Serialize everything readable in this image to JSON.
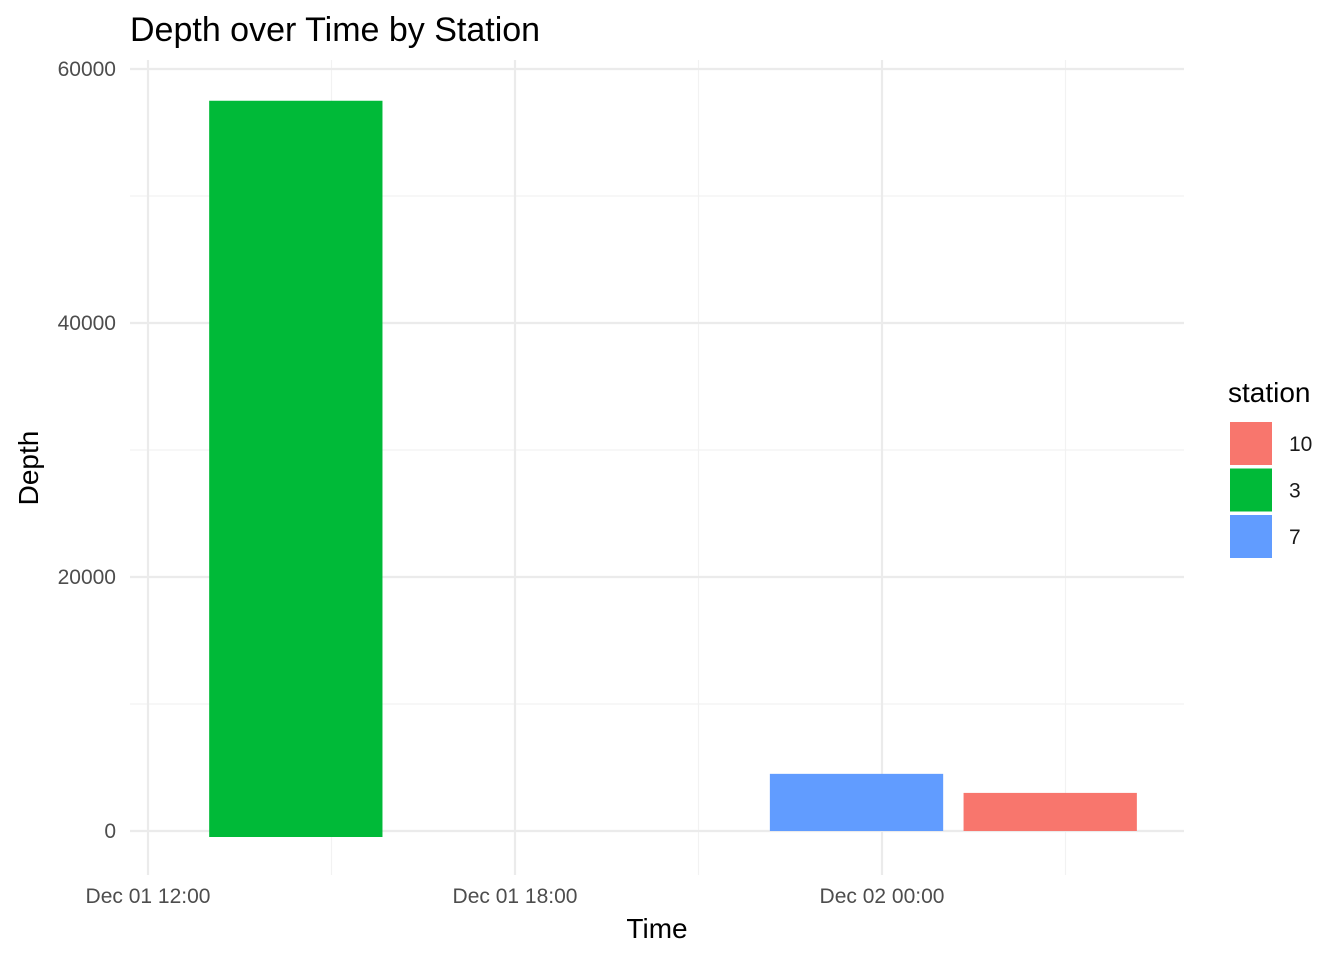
{
  "chart_data": {
    "type": "bar",
    "title": "Depth over Time by Station",
    "xlabel": "Time",
    "ylabel": "Depth",
    "x_ticks": [
      "Dec 01 12:00",
      "Dec 01 18:00",
      "Dec 02 00:00"
    ],
    "y_ticks": [
      "0",
      "20000",
      "40000",
      "60000"
    ],
    "ylim": [
      -3000,
      62000
    ],
    "grid": true,
    "legend": {
      "title": "station",
      "placement": "right",
      "entries": [
        "10",
        "3",
        "7"
      ]
    },
    "series": [
      {
        "name": "3",
        "color": "#00BA38",
        "bars": [
          {
            "start": "Dec 01 13:00",
            "end": "Dec 01 15:50",
            "value": 57500
          }
        ]
      },
      {
        "name": "7",
        "color": "#619CFF",
        "bars": [
          {
            "start": "Dec 01 22:10",
            "end": "Dec 02 01:00",
            "value": 4500
          }
        ]
      },
      {
        "name": "10",
        "color": "#F8766D",
        "bars": [
          {
            "start": "Dec 02 01:20",
            "end": "Dec 02 04:10",
            "value": 3000
          }
        ]
      }
    ]
  }
}
